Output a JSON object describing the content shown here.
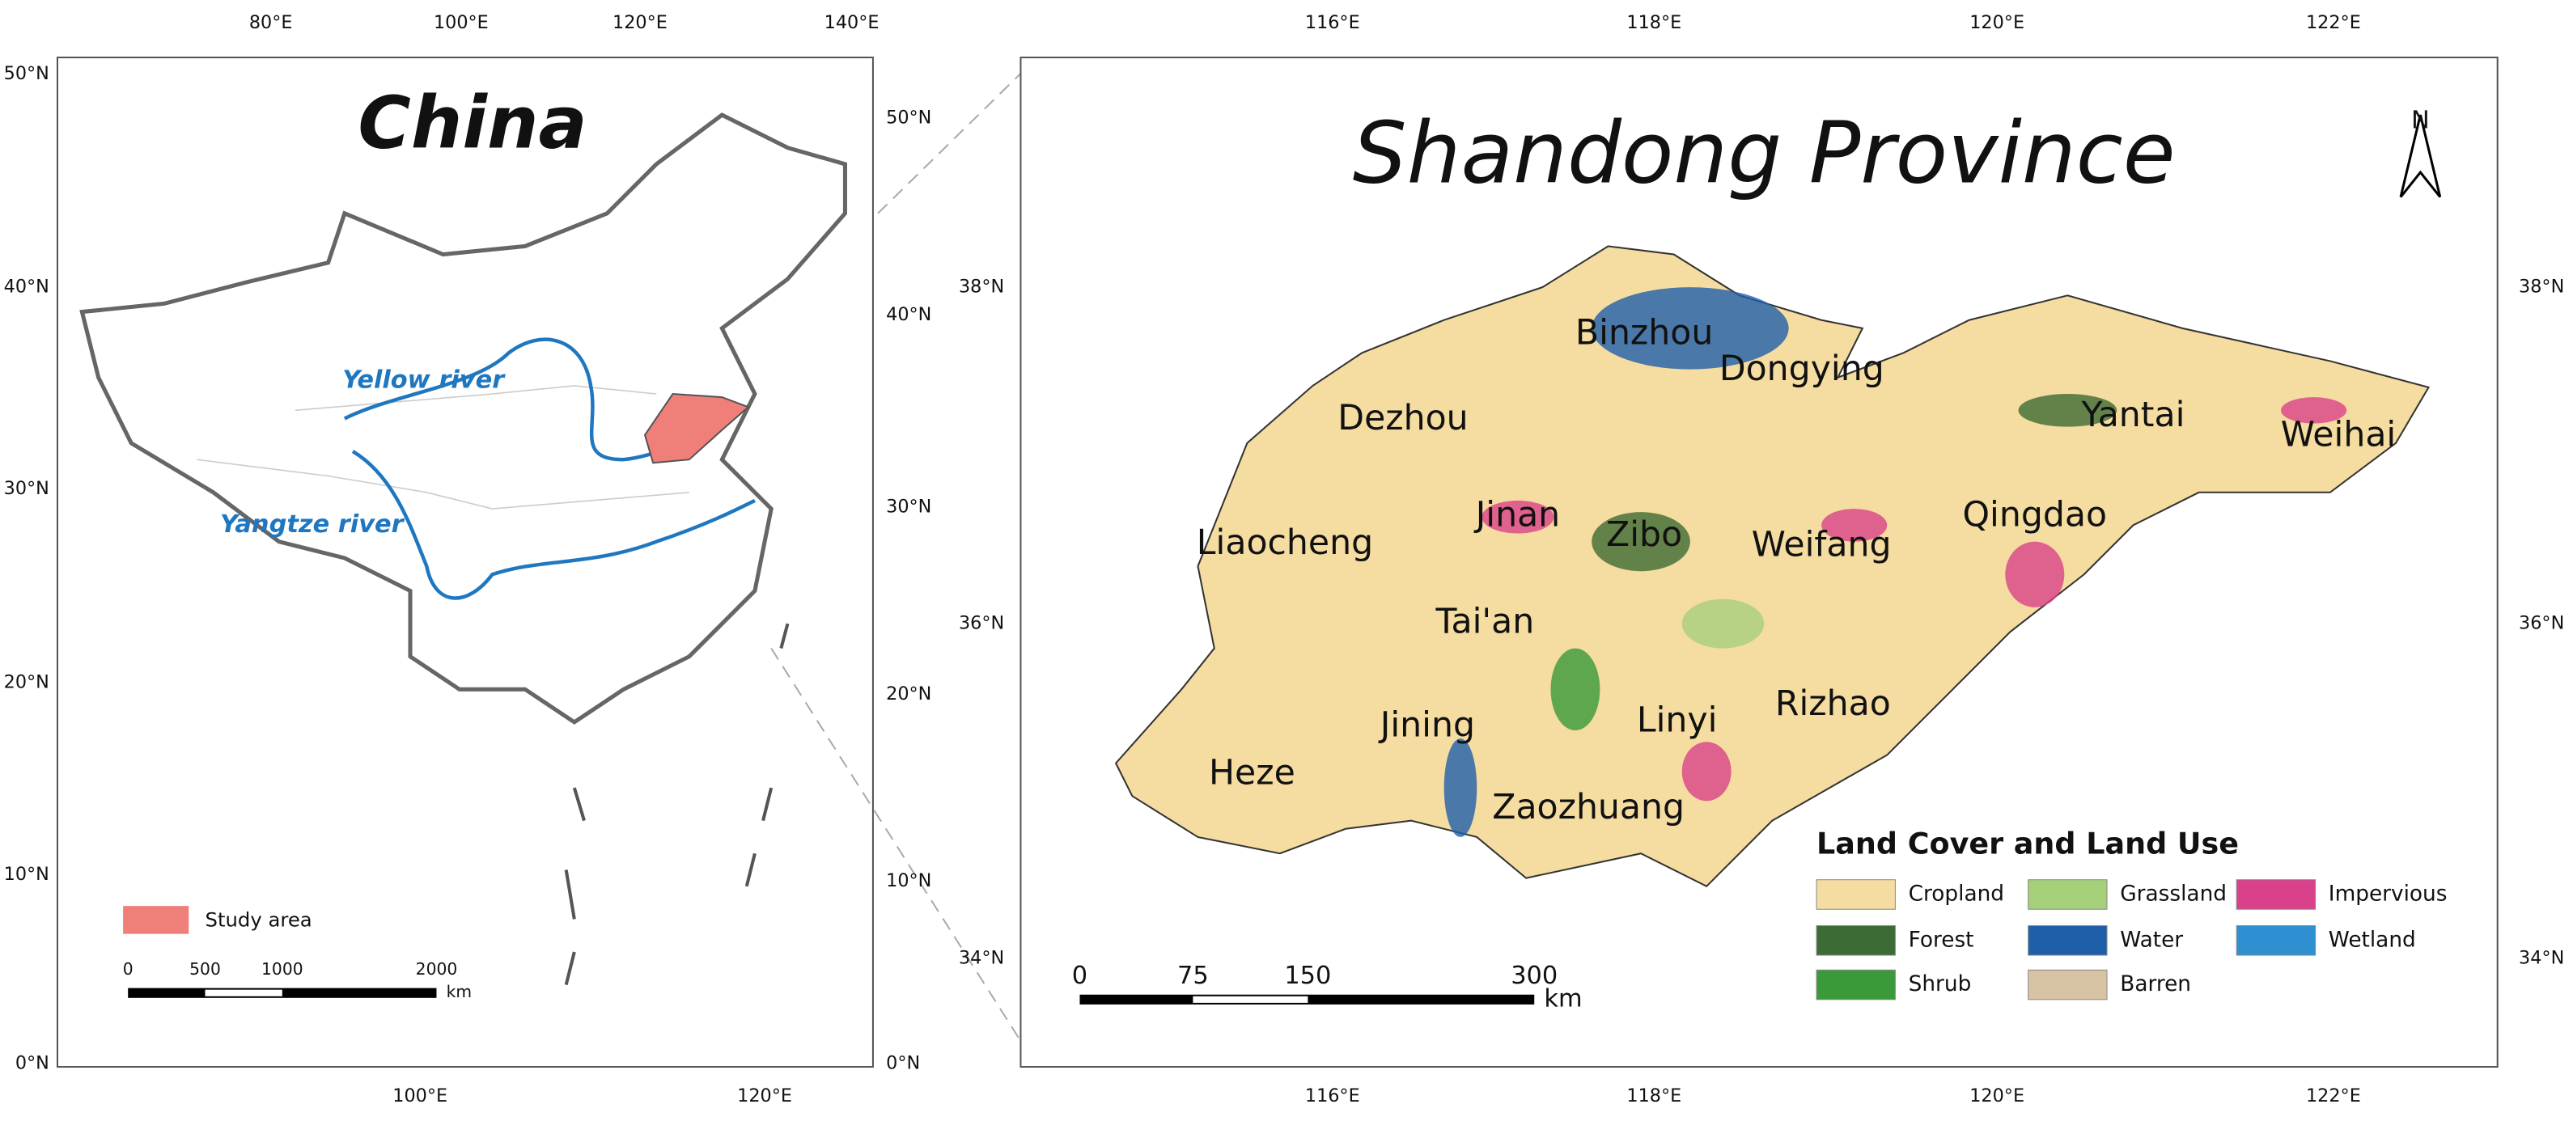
{
  "china_map": {
    "title": "China",
    "top_ticks": [
      "80°E",
      "100°E",
      "120°E",
      "140°E"
    ],
    "bottom_ticks": [
      "100°E",
      "120°E"
    ],
    "left_ticks": [
      "50°N",
      "40°N",
      "30°N",
      "20°N",
      "10°N",
      "0°N"
    ],
    "right_ticks": [
      "50°N",
      "40°N",
      "30°N",
      "20°N",
      "10°N",
      "0°N"
    ],
    "rivers": [
      "Yellow river",
      "Yangtze river"
    ],
    "legend": {
      "label": "Study area",
      "color": "#f07f7a"
    },
    "scale_bar": {
      "labels": [
        "0",
        "500",
        "1000",
        "2000"
      ],
      "unit": "km"
    }
  },
  "shandong_map": {
    "title": "Shandong Province",
    "north": "N",
    "top_ticks": [
      "116°E",
      "118°E",
      "120°E",
      "122°E"
    ],
    "bottom_ticks": [
      "116°E",
      "118°E",
      "120°E",
      "122°E"
    ],
    "left_ticks": [
      "38°N",
      "36°N",
      "34°N"
    ],
    "right_ticks": [
      "38°N",
      "36°N",
      "34°N"
    ],
    "cities": [
      "Binzhou",
      "Dongying",
      "Dezhou",
      "Yantai",
      "Weihai",
      "Liaocheng",
      "Jinan",
      "Zibo",
      "Weifang",
      "Qingdao",
      "Tai'an",
      "Rizhao",
      "Jining",
      "Linyi",
      "Heze",
      "Zaozhuang"
    ],
    "legend": {
      "title": "Land Cover and Land Use",
      "items": [
        {
          "label": "Cropland",
          "color": "#f5dca0"
        },
        {
          "label": "Forest",
          "color": "#3d6b35"
        },
        {
          "label": "Shrub",
          "color": "#3a9a3a"
        },
        {
          "label": "Grassland",
          "color": "#a6cf7a"
        },
        {
          "label": "Water",
          "color": "#1f5faa"
        },
        {
          "label": "Barren",
          "color": "#d8c3a5"
        },
        {
          "label": "Impervious",
          "color": "#d9428a"
        },
        {
          "label": "Wetland",
          "color": "#2f8fd0"
        }
      ]
    },
    "scale_bar": {
      "labels": [
        "0",
        "75",
        "150",
        "300"
      ],
      "unit": "km"
    }
  }
}
